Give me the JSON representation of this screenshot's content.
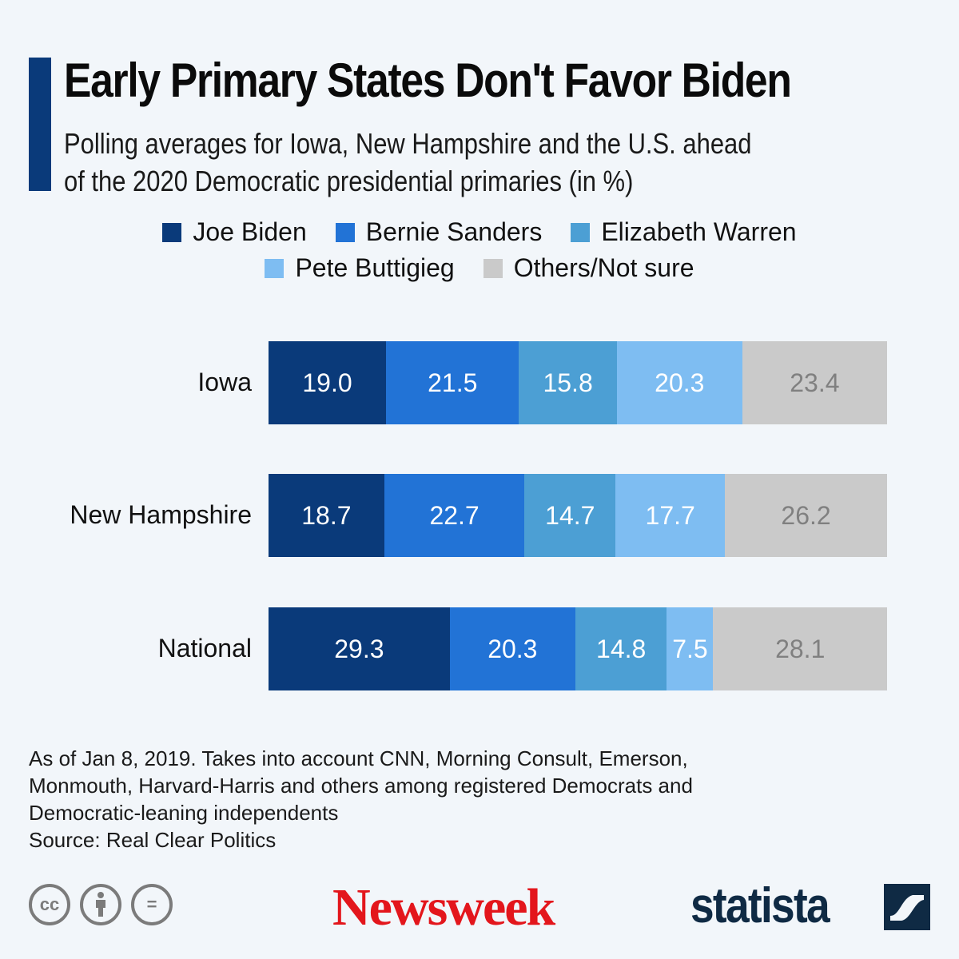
{
  "header": {
    "title": "Early Primary States Don't Favor Biden",
    "subtitle_line1": "Polling averages for Iowa, New Hampshire and the U.S. ahead",
    "subtitle_line2": "of the 2020 Democratic presidential primaries (in %)"
  },
  "colors": {
    "accent": "#0a3a7a",
    "Joe Biden": "#0a3a7a",
    "Bernie Sanders": "#2273d6",
    "Elizabeth Warren": "#4c9fd4",
    "Pete Buttigieg": "#7ebdf2",
    "Others/Not sure": "#cacaca",
    "label_light": "#ffffff",
    "label_dark": "#808080"
  },
  "chart_data": {
    "type": "bar",
    "orientation": "horizontal",
    "stacked": true,
    "title": "Early Primary States Don't Favor Biden",
    "subtitle": "Polling averages for Iowa, New Hampshire and the U.S. ahead of the 2020 Democratic presidential primaries (in %)",
    "categories": [
      "Iowa",
      "New Hampshire",
      "National"
    ],
    "series": [
      {
        "name": "Joe Biden",
        "values": [
          19.0,
          18.7,
          29.3
        ]
      },
      {
        "name": "Bernie Sanders",
        "values": [
          21.5,
          22.7,
          20.3
        ]
      },
      {
        "name": "Elizabeth Warren",
        "values": [
          15.8,
          14.7,
          14.8
        ]
      },
      {
        "name": "Pete Buttigieg",
        "values": [
          20.3,
          17.7,
          7.5
        ]
      },
      {
        "name": "Others/Not sure",
        "values": [
          23.4,
          26.2,
          28.1
        ]
      }
    ],
    "labels": [
      [
        "19.0",
        "21.5",
        "15.8",
        "20.3",
        "23.4"
      ],
      [
        "18.7",
        "22.7",
        "14.7",
        "17.7",
        "26.2"
      ],
      [
        "29.3",
        "20.3",
        "14.8",
        "7.5",
        "28.1"
      ]
    ],
    "xlim": [
      0,
      100
    ],
    "legend": "top-center",
    "grid": false
  },
  "footnote": {
    "line1": "As of Jan 8, 2019. Takes into account CNN, Morning Consult, Emerson,",
    "line2": "Monmouth, Harvard-Harris and others among registered Democrats and",
    "line3": "Democratic-leaning independents",
    "source": "Source: Real Clear Politics"
  },
  "footer": {
    "cc_icons": [
      "cc-icon",
      "by-attribution-icon",
      "no-derivatives-icon"
    ],
    "cc_text": "cc",
    "nd_text": "=",
    "newsweek_logo": "Newsweek",
    "statista_logo": "statista"
  }
}
